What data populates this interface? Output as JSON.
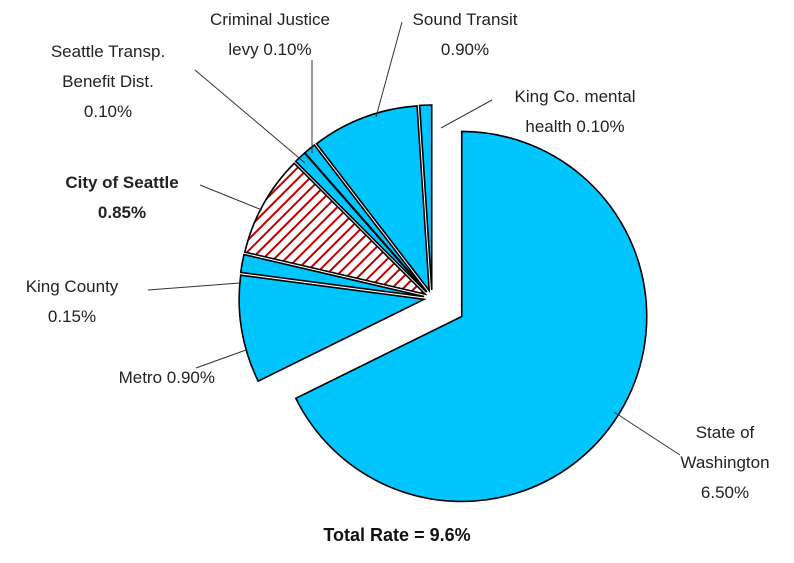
{
  "chart_data": {
    "type": "pie",
    "title": "Total Rate = 9.6%",
    "categories": [
      "State of Washington",
      "Metro",
      "King County",
      "City of Seattle",
      "Seattle Transp. Benefit Dist.",
      "Criminal Justice levy",
      "Sound Transit",
      "King Co. mental health"
    ],
    "values": [
      6.5,
      0.9,
      0.15,
      0.85,
      0.1,
      0.1,
      0.9,
      0.1
    ],
    "value_labels": [
      "6.50%",
      "0.90%",
      "0.15%",
      "0.85%",
      "0.10%",
      "0.10%",
      "0.90%",
      "0.10%"
    ],
    "colors": [
      "#00c5ff",
      "#00c5ff",
      "#00c5ff",
      "#c00000",
      "#00c5ff",
      "#00c5ff",
      "#00c5ff",
      "#00c5ff"
    ],
    "hatched": [
      false,
      false,
      false,
      true,
      false,
      false,
      false,
      false
    ],
    "bold_labels": [
      false,
      false,
      false,
      true,
      false,
      false,
      false,
      false
    ]
  }
}
